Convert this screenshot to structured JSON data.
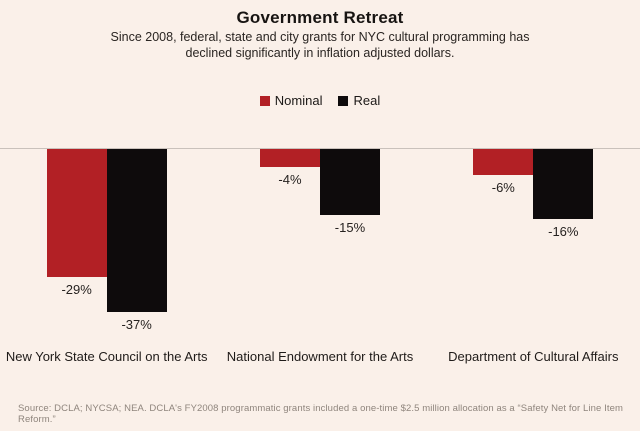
{
  "header": {
    "title": "Government Retreat",
    "subtitle": "Since 2008, federal, state and city grants for NYC cultural programming has declined significantly in inflation adjusted dollars."
  },
  "legend": {
    "items": [
      {
        "label": "Nominal",
        "color": "#b22025"
      },
      {
        "label": "Real",
        "color": "#0e0b0c"
      }
    ]
  },
  "chart_data": {
    "type": "bar",
    "title": "Government Retreat",
    "categories": [
      "New York State Council on the Arts",
      "National Endowment for the Arts",
      "Department of Cultural Affairs"
    ],
    "series": [
      {
        "name": "Nominal",
        "color": "#b22025",
        "values": [
          -29,
          -4,
          -6
        ],
        "labels": [
          "-29%",
          "-4%",
          "-6%"
        ]
      },
      {
        "name": "Real",
        "color": "#0e0b0c",
        "values": [
          -37,
          -15,
          -16
        ],
        "labels": [
          "-37%",
          "-15%",
          "-16%"
        ]
      }
    ],
    "xlabel": "",
    "ylabel": "",
    "unit": "%",
    "baseline": 0,
    "ylim": [
      -40,
      0
    ],
    "grid": false,
    "legend_position": "top-center"
  },
  "footer": {
    "source": "Source: DCLA; NYCSA; NEA. DCLA's FY2008 programmatic grants included a one-time $2.5 million allocation as a “Safety Net for Line Item Reform.”"
  },
  "colors": {
    "background": "#faf0e9",
    "baseline_line": "#c9c1bb",
    "text": "#1c1917",
    "source_text": "#8f857d"
  }
}
